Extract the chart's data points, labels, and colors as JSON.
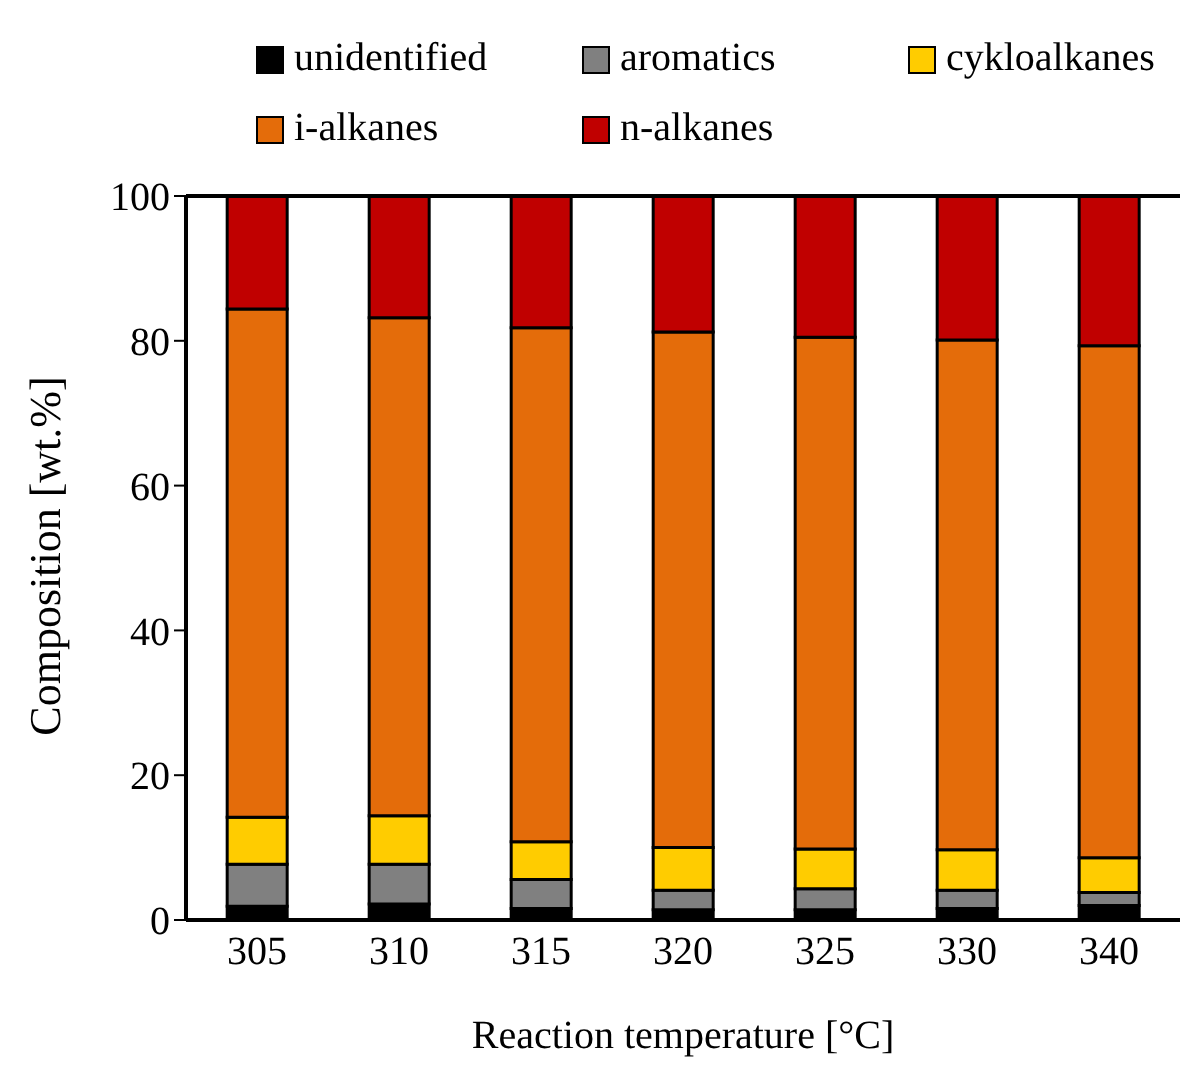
{
  "chart_data": {
    "type": "bar",
    "stacked": true,
    "xlabel": "Reaction temperature [°C]",
    "ylabel": "Composition [wt.%]",
    "categories": [
      "305",
      "310",
      "315",
      "320",
      "325",
      "330",
      "340"
    ],
    "series": [
      {
        "name": "unidentified",
        "color": "#000000",
        "values": [
          1.9,
          2.2,
          1.6,
          1.4,
          1.4,
          1.6,
          2.0
        ]
      },
      {
        "name": "aromatics",
        "color": "#808080",
        "values": [
          5.8,
          5.5,
          4.0,
          2.7,
          2.9,
          2.5,
          1.8
        ]
      },
      {
        "name": "cykloalkanes",
        "color": "#ffcc00",
        "values": [
          6.5,
          6.7,
          5.2,
          5.9,
          5.5,
          5.6,
          4.8
        ]
      },
      {
        "name": "i-alkanes",
        "color": "#e46c0a",
        "values": [
          70.2,
          68.8,
          71.0,
          71.2,
          70.7,
          70.4,
          70.7
        ]
      },
      {
        "name": "n-alkanes",
        "color": "#c00000",
        "values": [
          15.6,
          16.8,
          18.2,
          18.8,
          19.5,
          19.9,
          20.7
        ]
      }
    ],
    "ylim": [
      0,
      100
    ],
    "yticks": [
      0,
      20,
      40,
      60,
      80,
      100
    ],
    "grid": false,
    "legend": "top"
  }
}
